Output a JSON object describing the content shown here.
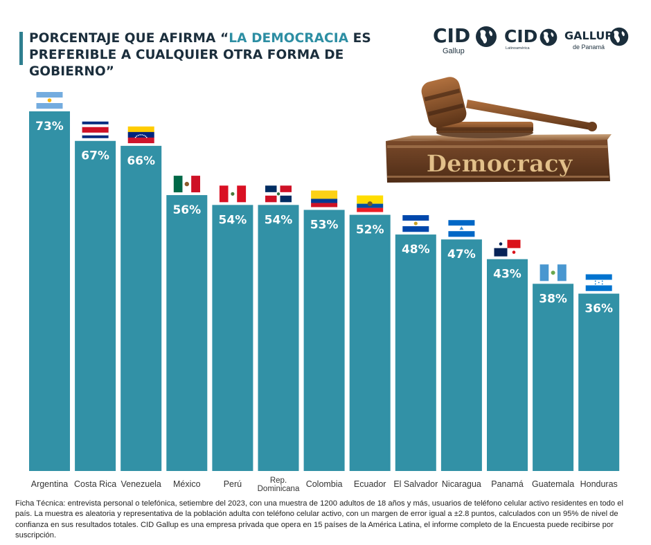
{
  "header": {
    "title_part1": "PORCENTAJE QUE AFIRMA “",
    "title_highlight": "LA DEMOCRACIA",
    "title_part2": " ES PREFERIBLE A CUALQUIER OTRA FORMA DE GOBIERNO”"
  },
  "logos": [
    {
      "main": "CID",
      "sub": "Gallup"
    },
    {
      "main": "CID",
      "sub": "Latinoamérica"
    },
    {
      "main": "GALLUP",
      "sub": "de Panamá"
    }
  ],
  "illustration": {
    "label": "Democracy"
  },
  "colors": {
    "bar": "#3291a6",
    "title": "#1b2e3c",
    "highlight": "#2d8ea3"
  },
  "chart_data": {
    "type": "bar",
    "categories": [
      "Argentina",
      "Costa Rica",
      "Venezuela",
      "México",
      "Perú",
      "Rep. Dominicana",
      "Colombia",
      "Ecuador",
      "El Salvador",
      "Nicaragua",
      "Panamá",
      "Guatemala",
      "Honduras"
    ],
    "category_lines": [
      [
        "Argentina"
      ],
      [
        "Costa Rica"
      ],
      [
        "Venezuela"
      ],
      [
        "México"
      ],
      [
        "Perú"
      ],
      [
        "Rep.",
        "Dominicana"
      ],
      [
        "Colombia"
      ],
      [
        "Ecuador"
      ],
      [
        "El Salvador"
      ],
      [
        "Nicaragua"
      ],
      [
        "Panamá"
      ],
      [
        "Guatemala"
      ],
      [
        "Honduras"
      ]
    ],
    "values": [
      73,
      67,
      66,
      56,
      54,
      54,
      53,
      52,
      48,
      47,
      43,
      38,
      36
    ],
    "labels": [
      "73%",
      "67%",
      "66%",
      "56%",
      "54%",
      "54%",
      "53%",
      "52%",
      "48%",
      "47%",
      "43%",
      "38%",
      "36%"
    ],
    "flags": [
      "argentina-flag",
      "costa-rica-flag",
      "venezuela-flag",
      "mexico-flag",
      "peru-flag",
      "dominican-republic-flag",
      "colombia-flag",
      "ecuador-flag",
      "el-salvador-flag",
      "nicaragua-flag",
      "panama-flag",
      "guatemala-flag",
      "honduras-flag"
    ],
    "ylim": [
      0,
      100
    ],
    "grid": false,
    "legend": "none"
  },
  "footnote": "Ficha Técnica: entrevista personal o telefónica, setiembre del 2023, con una muestra de 1200 adultos de 18 años y más, usuarios de teléfono celular activo residentes en todo el país. La muestra es aleatoria y representativa de la población adulta con teléfono celular activo, con un margen de error igual a ±2.8 puntos, calculados con un 95% de nivel de confianza en sus resultados totales. CID Gallup es una empresa privada que opera en 15 países de la América Latina, el informe completo de la Encuesta puede recibirse por suscripción."
}
